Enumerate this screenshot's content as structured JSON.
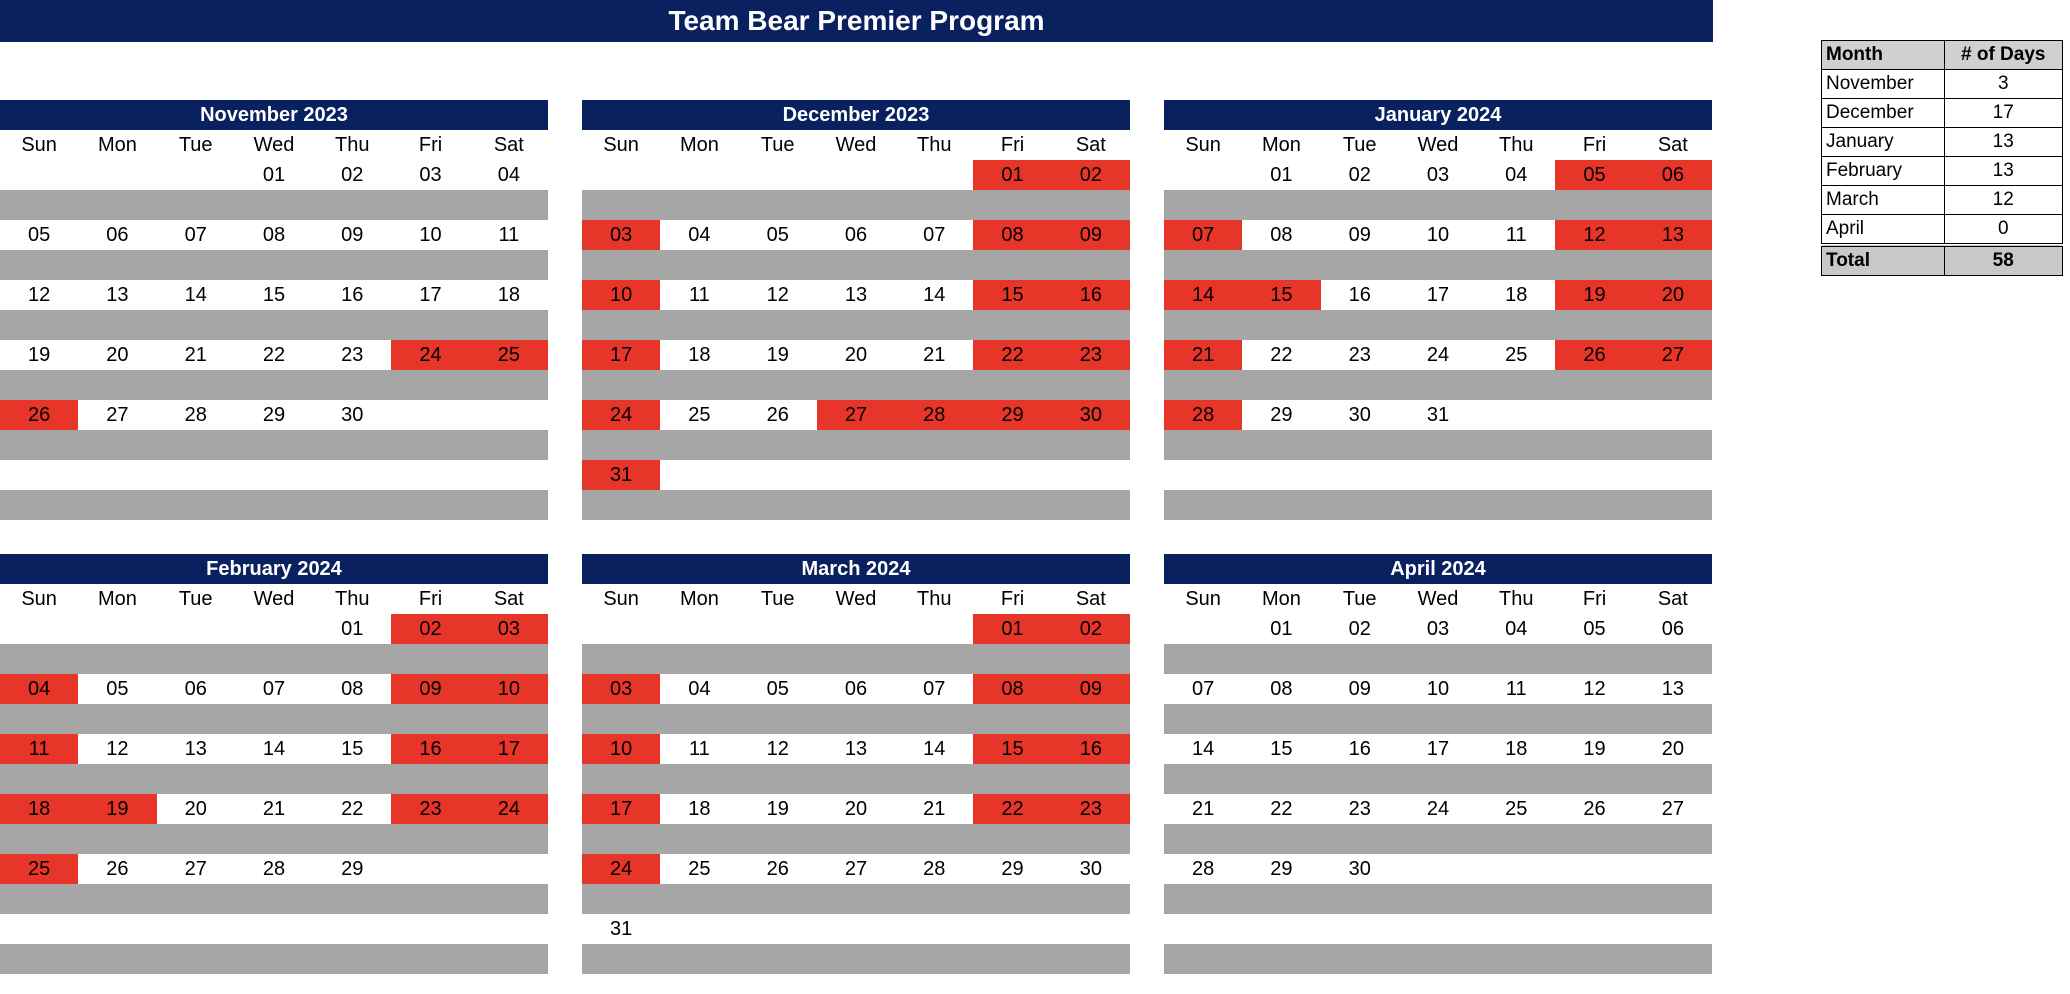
{
  "title": "Team Bear Premier Program",
  "weekdays": [
    "Sun",
    "Mon",
    "Tue",
    "Wed",
    "Thu",
    "Fri",
    "Sat"
  ],
  "colors": {
    "header_bg": "#0a2160",
    "off_day": "#e8352a",
    "spacer": "#a6a6a6"
  },
  "calendars": [
    {
      "title": "November 2023",
      "weeks": [
        [
          "",
          "",
          "",
          "01",
          "02",
          "03",
          "04"
        ],
        [
          "05",
          "06",
          "07",
          "08",
          "09",
          "10",
          "11"
        ],
        [
          "12",
          "13",
          "14",
          "15",
          "16",
          "17",
          "18"
        ],
        [
          "19",
          "20",
          "21",
          "22",
          "23",
          "24",
          "25"
        ],
        [
          "26",
          "27",
          "28",
          "29",
          "30",
          "",
          ""
        ],
        [
          "",
          "",
          "",
          "",
          "",
          "",
          ""
        ]
      ],
      "highlight": [
        "24",
        "25",
        "26"
      ]
    },
    {
      "title": "December 2023",
      "weeks": [
        [
          "",
          "",
          "",
          "",
          "",
          "01",
          "02"
        ],
        [
          "03",
          "04",
          "05",
          "06",
          "07",
          "08",
          "09"
        ],
        [
          "10",
          "11",
          "12",
          "13",
          "14",
          "15",
          "16"
        ],
        [
          "17",
          "18",
          "19",
          "20",
          "21",
          "22",
          "23"
        ],
        [
          "24",
          "25",
          "26",
          "27",
          "28",
          "29",
          "30"
        ],
        [
          "31",
          "",
          "",
          "",
          "",
          "",
          ""
        ]
      ],
      "highlight": [
        "01",
        "02",
        "03",
        "08",
        "09",
        "10",
        "15",
        "16",
        "17",
        "22",
        "23",
        "24",
        "27",
        "28",
        "29",
        "30",
        "31"
      ]
    },
    {
      "title": "January 2024",
      "weeks": [
        [
          "",
          "01",
          "02",
          "03",
          "04",
          "05",
          "06"
        ],
        [
          "07",
          "08",
          "09",
          "10",
          "11",
          "12",
          "13"
        ],
        [
          "14",
          "15",
          "16",
          "17",
          "18",
          "19",
          "20"
        ],
        [
          "21",
          "22",
          "23",
          "24",
          "25",
          "26",
          "27"
        ],
        [
          "28",
          "29",
          "30",
          "31",
          "",
          "",
          ""
        ],
        [
          "",
          "",
          "",
          "",
          "",
          "",
          ""
        ]
      ],
      "highlight": [
        "05",
        "06",
        "07",
        "12",
        "13",
        "14",
        "15",
        "19",
        "20",
        "21",
        "26",
        "27",
        "28"
      ]
    },
    {
      "title": "February 2024",
      "weeks": [
        [
          "",
          "",
          "",
          "",
          "01",
          "02",
          "03"
        ],
        [
          "04",
          "05",
          "06",
          "07",
          "08",
          "09",
          "10"
        ],
        [
          "11",
          "12",
          "13",
          "14",
          "15",
          "16",
          "17"
        ],
        [
          "18",
          "19",
          "20",
          "21",
          "22",
          "23",
          "24"
        ],
        [
          "25",
          "26",
          "27",
          "28",
          "29",
          "",
          ""
        ],
        [
          "",
          "",
          "",
          "",
          "",
          "",
          ""
        ]
      ],
      "highlight": [
        "02",
        "03",
        "04",
        "09",
        "10",
        "11",
        "16",
        "17",
        "18",
        "19",
        "23",
        "24",
        "25"
      ]
    },
    {
      "title": "March 2024",
      "weeks": [
        [
          "",
          "",
          "",
          "",
          "",
          "01",
          "02"
        ],
        [
          "03",
          "04",
          "05",
          "06",
          "07",
          "08",
          "09"
        ],
        [
          "10",
          "11",
          "12",
          "13",
          "14",
          "15",
          "16"
        ],
        [
          "17",
          "18",
          "19",
          "20",
          "21",
          "22",
          "23"
        ],
        [
          "24",
          "25",
          "26",
          "27",
          "28",
          "29",
          "30"
        ],
        [
          "31",
          "",
          "",
          "",
          "",
          "",
          ""
        ]
      ],
      "highlight": [
        "01",
        "02",
        "03",
        "08",
        "09",
        "10",
        "15",
        "16",
        "17",
        "22",
        "23",
        "24"
      ]
    },
    {
      "title": "April 2024",
      "weeks": [
        [
          "",
          "01",
          "02",
          "03",
          "04",
          "05",
          "06"
        ],
        [
          "07",
          "08",
          "09",
          "10",
          "11",
          "12",
          "13"
        ],
        [
          "14",
          "15",
          "16",
          "17",
          "18",
          "19",
          "20"
        ],
        [
          "21",
          "22",
          "23",
          "24",
          "25",
          "26",
          "27"
        ],
        [
          "28",
          "29",
          "30",
          "",
          "",
          "",
          ""
        ],
        [
          "",
          "",
          "",
          "",
          "",
          "",
          ""
        ]
      ],
      "highlight": []
    }
  ],
  "summary": {
    "headers": [
      "Month",
      "# of Days"
    ],
    "rows": [
      {
        "month": "November",
        "days": "3"
      },
      {
        "month": "December",
        "days": "17"
      },
      {
        "month": "January",
        "days": "13"
      },
      {
        "month": "February",
        "days": "13"
      },
      {
        "month": "March",
        "days": "12"
      },
      {
        "month": "April",
        "days": "0"
      }
    ],
    "total_label": "Total",
    "total_value": "58"
  }
}
